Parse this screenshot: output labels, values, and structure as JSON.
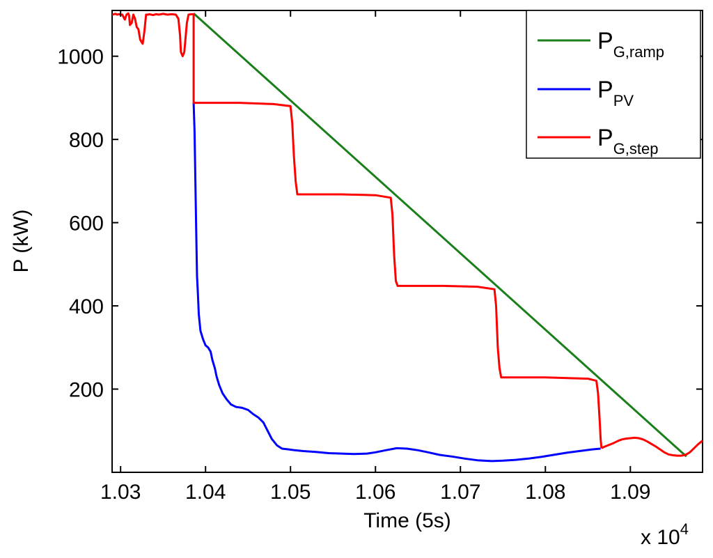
{
  "chart_data": {
    "type": "line",
    "xlabel": "Time (5s)",
    "ylabel": "P (kW)",
    "x_multiplier": "x 10",
    "x_multiplier_exp": "4",
    "xlim": [
      10290,
      10985
    ],
    "ylim": [
      0,
      1110
    ],
    "x_ticks": [
      10300,
      10400,
      10500,
      10600,
      10700,
      10800,
      10900
    ],
    "x_tick_labels": [
      "1.03",
      "1.04",
      "1.05",
      "1.06",
      "1.07",
      "1.08",
      "1.09"
    ],
    "y_ticks": [
      200,
      400,
      600,
      800,
      1000
    ],
    "y_tick_labels": [
      "200",
      "400",
      "600",
      "800",
      "1000"
    ],
    "grid": false,
    "legend_position": "top-right",
    "series": [
      {
        "name": "P",
        "sub": "G,ramp",
        "color": "#1a7f1a",
        "x": [
          10386,
          10966
        ],
        "y": [
          1103,
          38
        ]
      },
      {
        "name": "P",
        "sub": "PV",
        "color": "#0000ff",
        "x": [
          10386,
          10387,
          10388,
          10389,
          10390,
          10391,
          10392,
          10394,
          10397,
          10400,
          10403,
          10406,
          10408,
          10411,
          10413,
          10416,
          10420,
          10425,
          10430,
          10436,
          10443,
          10450,
          10456,
          10462,
          10468,
          10473,
          10478,
          10484,
          10490,
          10498,
          10505,
          10515,
          10530,
          10545,
          10560,
          10575,
          10590,
          10600,
          10612,
          10625,
          10637,
          10650,
          10662,
          10675,
          10690,
          10705,
          10720,
          10737,
          10750,
          10765,
          10780,
          10795,
          10810,
          10825,
          10840,
          10855,
          10865
        ],
        "y": [
          888,
          820,
          700,
          580,
          470,
          430,
          380,
          340,
          320,
          305,
          300,
          290,
          270,
          250,
          230,
          210,
          190,
          175,
          163,
          157,
          155,
          150,
          140,
          132,
          120,
          100,
          80,
          65,
          57,
          55,
          53,
          51,
          49,
          46,
          45,
          44,
          45,
          48,
          53,
          58,
          57,
          53,
          48,
          42,
          38,
          33,
          29,
          27,
          28,
          30,
          33,
          37,
          42,
          47,
          51,
          55,
          57
        ]
      },
      {
        "name": "P",
        "sub": "G,step",
        "color": "#ff0000",
        "x": [
          10290,
          10294,
          10296,
          10298,
          10302,
          10305,
          10307,
          10309,
          10310,
          10311,
          10313,
          10315,
          10317,
          10319,
          10321,
          10323,
          10326,
          10328,
          10330,
          10332,
          10334,
          10336,
          10338,
          10340,
          10342,
          10345,
          10350,
          10355,
          10360,
          10365,
          10368,
          10370,
          10371,
          10373,
          10375,
          10378,
          10380,
          10384,
          10386,
          10386,
          10400,
          10440,
          10480,
          10500,
          10502,
          10504,
          10506,
          10508,
          10520,
          10560,
          10600,
          10618,
          10620,
          10622,
          10624,
          10626,
          10640,
          10680,
          10720,
          10740,
          10742,
          10744,
          10746,
          10748,
          10760,
          10800,
          10850,
          10860,
          10862,
          10864,
          10865,
          10866,
          10867,
          10870,
          10875,
          10880,
          10885,
          10890,
          10895,
          10900,
          10905,
          10910,
          10915,
          10920,
          10925,
          10930,
          10935,
          10940,
          10945,
          10950,
          10955,
          10960,
          10965,
          10970,
          10975,
          10980,
          10985
        ],
        "y": [
          1100,
          1102,
          1100,
          1101,
          1100,
          1088,
          1100,
          1103,
          1098,
          1075,
          1080,
          1100,
          1090,
          1070,
          1065,
          1040,
          1030,
          1060,
          1100,
          1100,
          1101,
          1100,
          1099,
          1100,
          1101,
          1100,
          1102,
          1100,
          1101,
          1100,
          1090,
          1050,
          1010,
          1000,
          1010,
          1080,
          1100,
          1101,
          1101,
          888,
          888,
          888,
          885,
          880,
          840,
          760,
          700,
          668,
          668,
          668,
          666,
          660,
          620,
          520,
          460,
          448,
          448,
          448,
          446,
          440,
          400,
          300,
          250,
          228,
          228,
          228,
          225,
          220,
          190,
          120,
          80,
          60,
          59,
          62,
          66,
          70,
          75,
          79,
          81,
          82,
          83,
          82,
          79,
          74,
          68,
          62,
          55,
          48,
          43,
          41,
          40,
          40,
          42,
          48,
          58,
          68,
          76
        ]
      }
    ]
  }
}
